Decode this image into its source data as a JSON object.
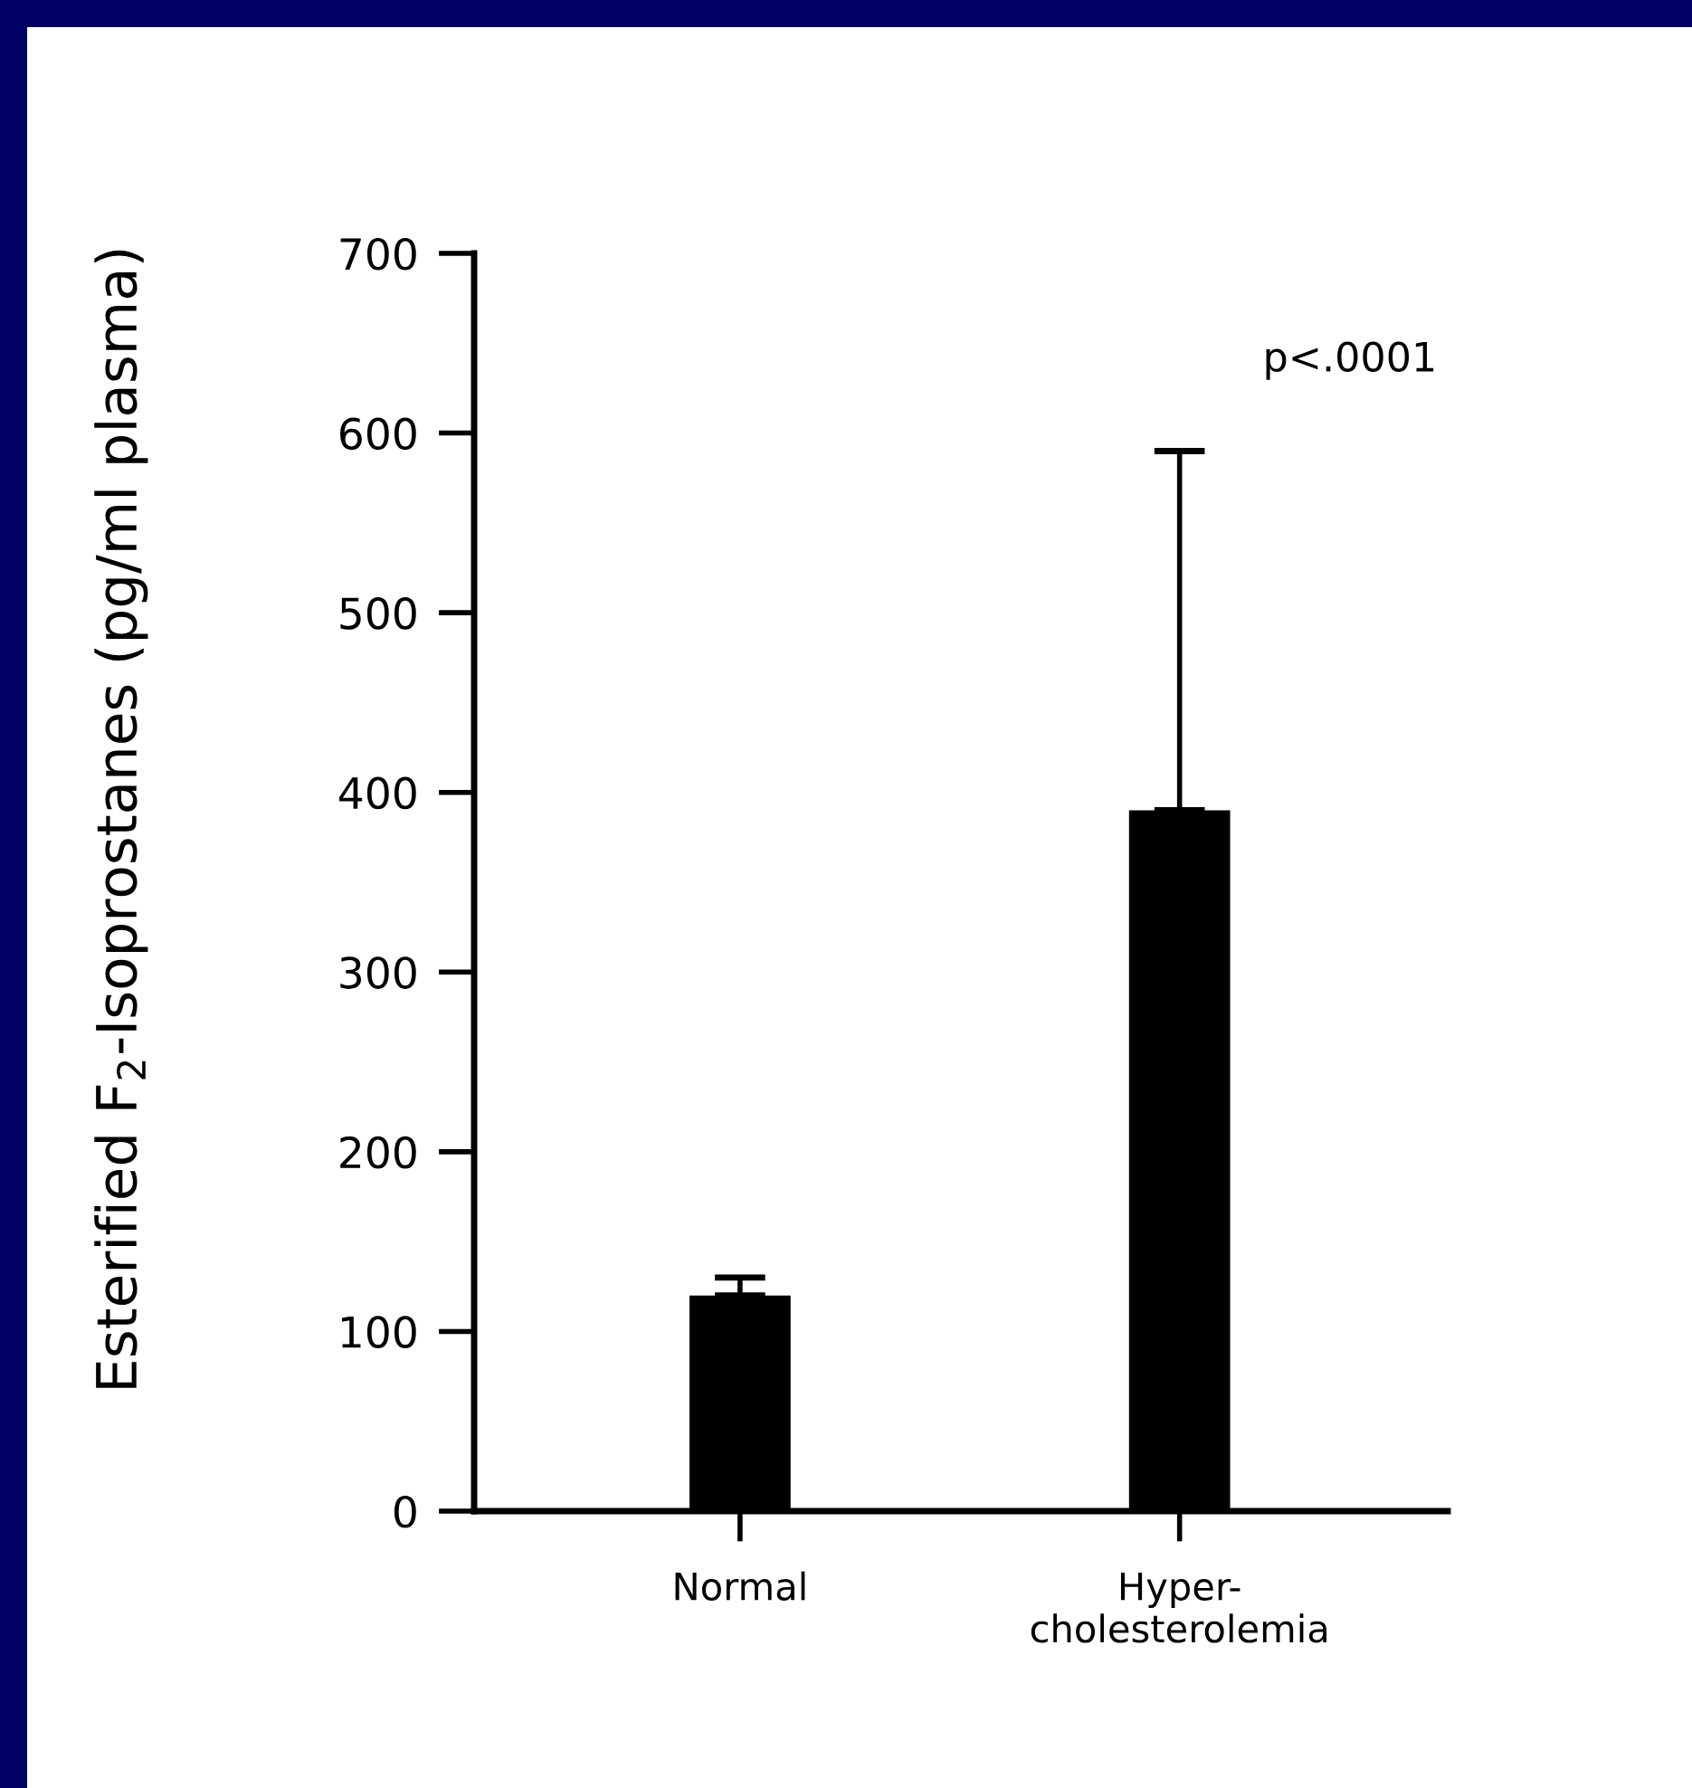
{
  "chart_data": {
    "type": "bar",
    "ylabel": "Esterified F$_{2}$-Isoprostanes (pg/ml plasma)",
    "categories": [
      "Normal",
      "Hyper-\ncholesterolemia"
    ],
    "values": [
      120,
      390
    ],
    "errors": [
      [
        120,
        130
      ],
      [
        390,
        590
      ]
    ],
    "color": "#000000",
    "ylim": [
      0,
      700
    ],
    "yticks": [
      0,
      100,
      200,
      300,
      400,
      500,
      600,
      700
    ],
    "annotations": [
      "p<.0001"
    ],
    "grid": false,
    "legend": false
  }
}
